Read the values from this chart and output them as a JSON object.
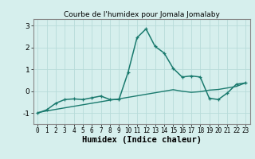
{
  "title": "Courbe de l'humidex pour Jomala Jomalaby",
  "xlabel": "Humidex (Indice chaleur)",
  "x": [
    0,
    1,
    2,
    3,
    4,
    5,
    6,
    7,
    8,
    9,
    10,
    11,
    12,
    13,
    14,
    15,
    16,
    17,
    18,
    19,
    20,
    21,
    22,
    23
  ],
  "y_line": [
    -1.0,
    -0.85,
    -0.55,
    -0.38,
    -0.35,
    -0.38,
    -0.3,
    -0.22,
    -0.38,
    -0.38,
    0.85,
    2.45,
    2.85,
    2.05,
    1.75,
    1.05,
    0.65,
    0.7,
    0.65,
    -0.32,
    -0.38,
    -0.08,
    0.32,
    0.38
  ],
  "y_trend": [
    -0.98,
    -0.9,
    -0.83,
    -0.76,
    -0.69,
    -0.62,
    -0.55,
    -0.48,
    -0.41,
    -0.35,
    -0.28,
    -0.21,
    -0.14,
    -0.07,
    0.0,
    0.07,
    0.0,
    -0.05,
    -0.02,
    0.05,
    0.08,
    0.15,
    0.22,
    0.38
  ],
  "line_color": "#1a7a6e",
  "trend_color": "#1a7a6e",
  "bg_color": "#d6efed",
  "grid_color": "#b8dbd9",
  "axis_color": "#888888",
  "ylim": [
    -1.5,
    3.3
  ],
  "xlim": [
    -0.5,
    23.5
  ],
  "yticks": [
    -1,
    0,
    1,
    2,
    3
  ],
  "title_fontsize": 6.5,
  "label_fontsize": 7.5,
  "tick_fontsize": 5.5
}
